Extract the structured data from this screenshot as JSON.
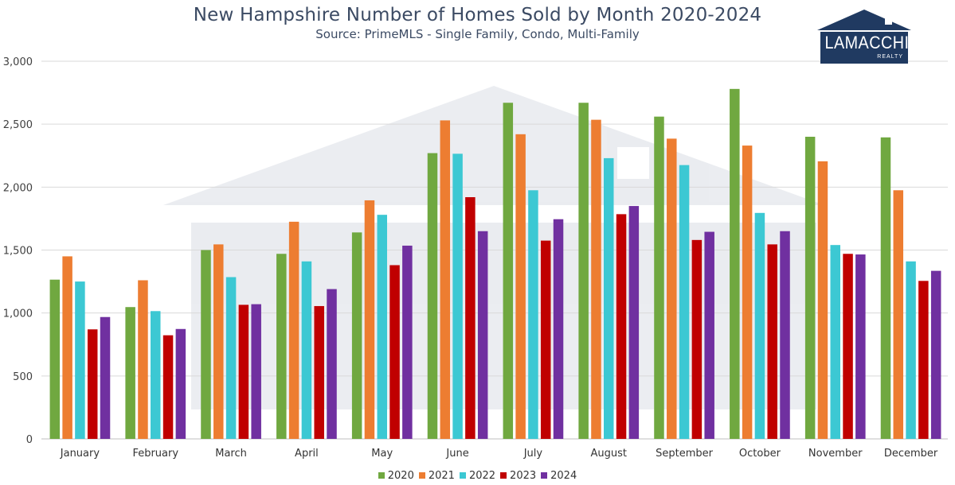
{
  "title": "New Hampshire Number of Homes Sold by Month 2020-2024",
  "subtitle": "Source: PrimeMLS - Single Family, Condo, Multi-Family",
  "logo": {
    "name": "LAMACCHIA",
    "sub": "REALTY"
  },
  "chart_data": {
    "type": "bar",
    "categories": [
      "January",
      "February",
      "March",
      "April",
      "May",
      "June",
      "July",
      "August",
      "September",
      "October",
      "November",
      "December"
    ],
    "series": [
      {
        "name": "2020",
        "color": "#70a840",
        "values": [
          1265,
          1047,
          1500,
          1470,
          1640,
          2270,
          2670,
          2670,
          2560,
          2780,
          2400,
          2395
        ]
      },
      {
        "name": "2021",
        "color": "#ed7d31",
        "values": [
          1450,
          1260,
          1545,
          1725,
          1895,
          2530,
          2420,
          2535,
          2385,
          2330,
          2205,
          1975
        ]
      },
      {
        "name": "2022",
        "color": "#3cc8d3",
        "values": [
          1250,
          1015,
          1285,
          1410,
          1780,
          2265,
          1975,
          2230,
          2175,
          1795,
          1540,
          1410
        ]
      },
      {
        "name": "2023",
        "color": "#c00000",
        "values": [
          870,
          823,
          1065,
          1055,
          1380,
          1920,
          1575,
          1785,
          1580,
          1545,
          1470,
          1255
        ]
      },
      {
        "name": "2024",
        "color": "#7030a0",
        "values": [
          968,
          873,
          1070,
          1190,
          1535,
          1650,
          1745,
          1850,
          1645,
          1650,
          1465,
          1335
        ]
      }
    ],
    "ylim": [
      0,
      3000
    ],
    "yticks": [
      0,
      500,
      1000,
      1500,
      2000,
      2500,
      3000
    ],
    "ytick_labels": [
      "0",
      "500",
      "1,000",
      "1,500",
      "2,000",
      "2,500",
      "3,000"
    ],
    "grid": true,
    "legend_position": "bottom"
  }
}
